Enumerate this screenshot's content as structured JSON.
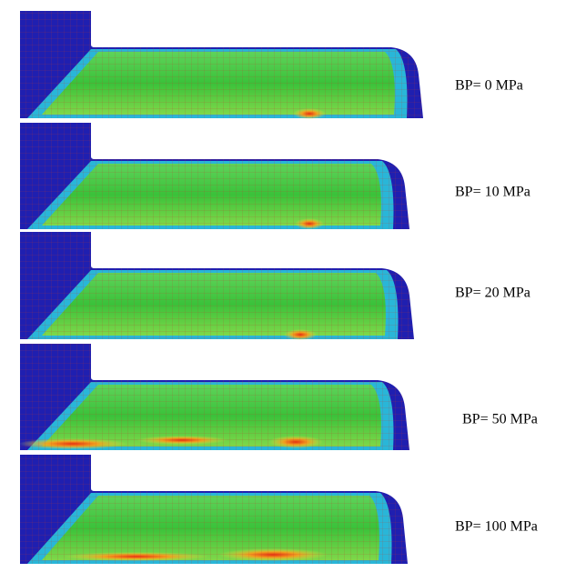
{
  "panels": [
    {
      "label": "BP= 0 MPa"
    },
    {
      "label": "BP= 10 MPa"
    },
    {
      "label": "BP= 20 MPa"
    },
    {
      "label": "BP= 50 MPa"
    },
    {
      "label": "BP= 100 MPa"
    }
  ]
}
